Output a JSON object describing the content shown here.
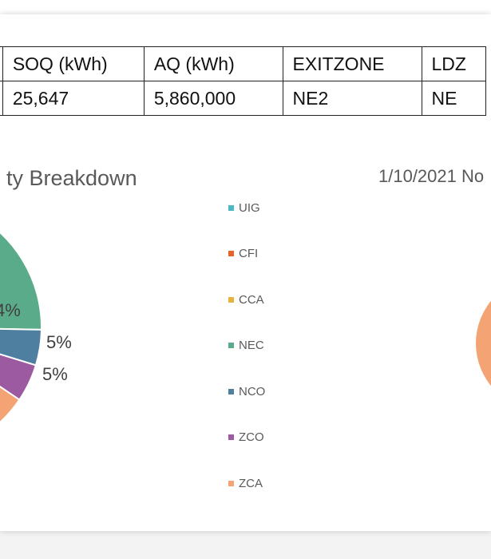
{
  "table": {
    "headers": [
      "SOQ (kWh)",
      "AQ (kWh)",
      "EXITZONE",
      "LDZ"
    ],
    "row": [
      "25,647",
      "5,860,000",
      "NE2",
      "NE"
    ]
  },
  "chart_data": [
    {
      "type": "pie",
      "title": "ty Breakdown",
      "legend_position": "right",
      "categories": [
        "UIG",
        "CFI",
        "CCA",
        "NEC",
        "NCO",
        "ZCO",
        "ZCA"
      ],
      "colors": [
        "#4bb8c8",
        "#e8622a",
        "#e7b33d",
        "#5aab8a",
        "#4e7fa0",
        "#9c5aa1",
        "#f3a374"
      ],
      "visible_data_labels": [
        "4%",
        "5%",
        "5%"
      ],
      "slices_visible": [
        {
          "label": "NEC",
          "data_label": "4%"
        },
        {
          "label": "NCO",
          "data_label": "5%"
        },
        {
          "label": "ZCO",
          "data_label": "5%"
        },
        {
          "label": "ZCA",
          "data_label": ""
        }
      ]
    },
    {
      "type": "pie",
      "title": "1/10/2021 No",
      "colors": [
        "#f3a374"
      ]
    }
  ]
}
